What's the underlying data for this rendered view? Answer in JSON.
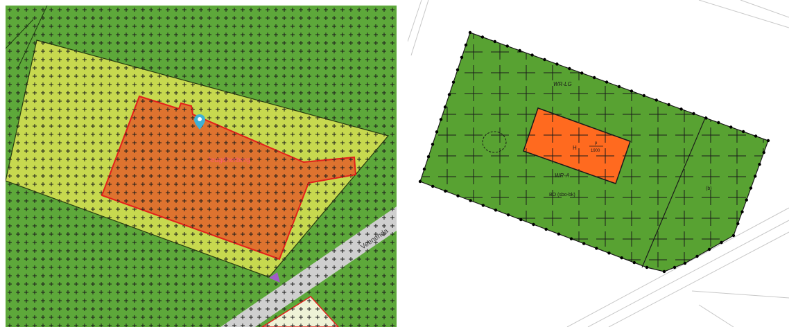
{
  "left_map": {
    "building_label": "Jeugdherberg",
    "street_label": "Veenenda",
    "colors": {
      "background_green": "#5da83a",
      "outer_parcel": "#c7d94f",
      "building_fill": "#e06a2c",
      "building_stroke": "#e3201b",
      "road": "#cfcfcf",
      "marker": "#3fb1d6",
      "purple_marker": "#a15cc9",
      "label_color": "#ff5a6e"
    },
    "icons": [
      "map-pin-icon",
      "triangle-marker-icon"
    ]
  },
  "right_map": {
    "zone_label_top": "WR-LG",
    "zone_label_bottom": "WR-A",
    "building_code": "H",
    "building_year_label": "p",
    "building_year": "1900",
    "bo_label": "BO (sbo-bk)",
    "side_label": "(b)",
    "colors": {
      "zone_green": "#58a232",
      "building_orange": "#ff6a1f",
      "boundary_dots": "#000000"
    }
  }
}
